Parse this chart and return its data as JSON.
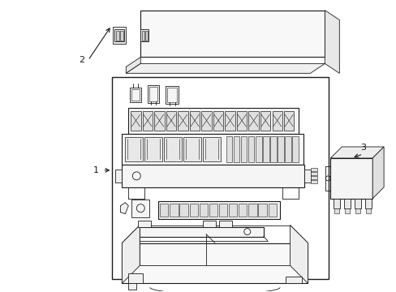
{
  "background_color": "#ffffff",
  "line_color": "#1a1a1a",
  "fig_width": 4.89,
  "fig_height": 3.6,
  "dpi": 100,
  "label_1": "1",
  "label_2": "2",
  "label_3": "3"
}
